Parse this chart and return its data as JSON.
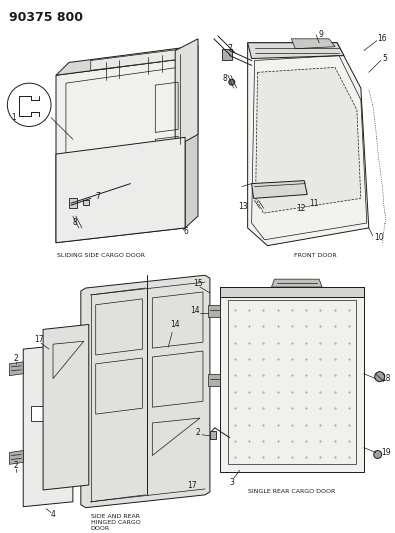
{
  "title": "90375 800",
  "bg_color": "#f5f5f0",
  "line_color": "#1a1a1a",
  "title_fontsize": 9,
  "label_fontsize": 5.5,
  "caption_fontsize": 4.5,
  "captions": {
    "sliding_side": "SLIDING SIDE CARGO DOOR",
    "front_door": "FRONT DOOR",
    "side_rear_hinged": "SIDE AND REAR\nHINGED CARGO\nDOOR",
    "single_rear": "SINGLE REAR CARGO DOOR"
  }
}
